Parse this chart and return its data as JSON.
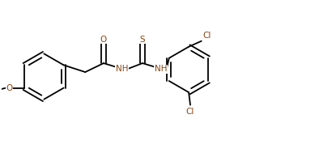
{
  "bg_color": "#ffffff",
  "line_color": "#000000",
  "label_color": "#8B4513",
  "bond_lw": 1.3,
  "dbo": 0.007,
  "figsize": [
    3.94,
    1.89
  ],
  "dpi": 100,
  "xlim": [
    0,
    1.0
  ],
  "ylim": [
    0,
    0.48
  ]
}
